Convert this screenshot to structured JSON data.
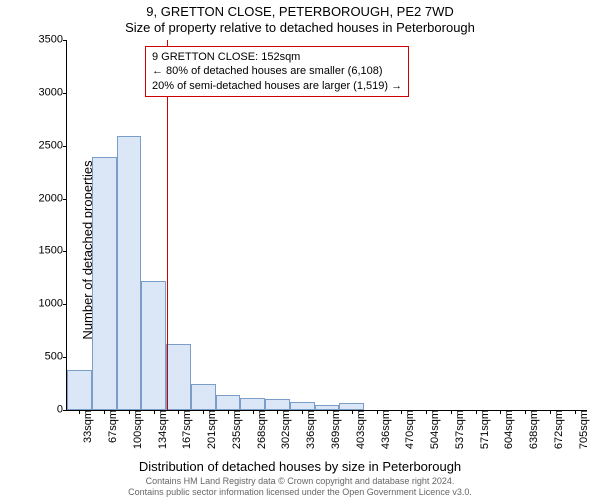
{
  "titles": {
    "main": "9, GRETTON CLOSE, PETERBOROUGH, PE2 7WD",
    "sub": "Size of property relative to detached houses in Peterborough"
  },
  "axes": {
    "ylabel": "Number of detached properties",
    "xlabel": "Distribution of detached houses by size in Peterborough",
    "ymax": 3500,
    "ytick_step": 500,
    "yticks": [
      0,
      500,
      1000,
      1500,
      2000,
      2500,
      3000,
      3500
    ],
    "label_fontsize": 13,
    "tick_fontsize": 11
  },
  "chart": {
    "type": "histogram",
    "bar_fill": "#dbe7f6",
    "bar_stroke": "#7a9ec7",
    "background": "#ffffff",
    "categories": [
      "33sqm",
      "67sqm",
      "100sqm",
      "134sqm",
      "167sqm",
      "201sqm",
      "235sqm",
      "268sqm",
      "302sqm",
      "336sqm",
      "369sqm",
      "403sqm",
      "436sqm",
      "470sqm",
      "504sqm",
      "537sqm",
      "571sqm",
      "604sqm",
      "638sqm",
      "672sqm",
      "705sqm"
    ],
    "values": [
      380,
      2390,
      2590,
      1220,
      620,
      250,
      140,
      110,
      100,
      80,
      50,
      70,
      0,
      0,
      0,
      0,
      0,
      0,
      0,
      0,
      0
    ]
  },
  "marker": {
    "value_sqm": 152,
    "color": "#d00000",
    "callout_lines": [
      "9 GRETTON CLOSE: 152sqm",
      "← 80% of detached houses are smaller (6,108)",
      "20% of semi-detached houses are larger (1,519) →"
    ]
  },
  "footer": {
    "line1": "Contains HM Land Registry data © Crown copyright and database right 2024.",
    "line2": "Contains public sector information licensed under the Open Government Licence v3.0."
  }
}
